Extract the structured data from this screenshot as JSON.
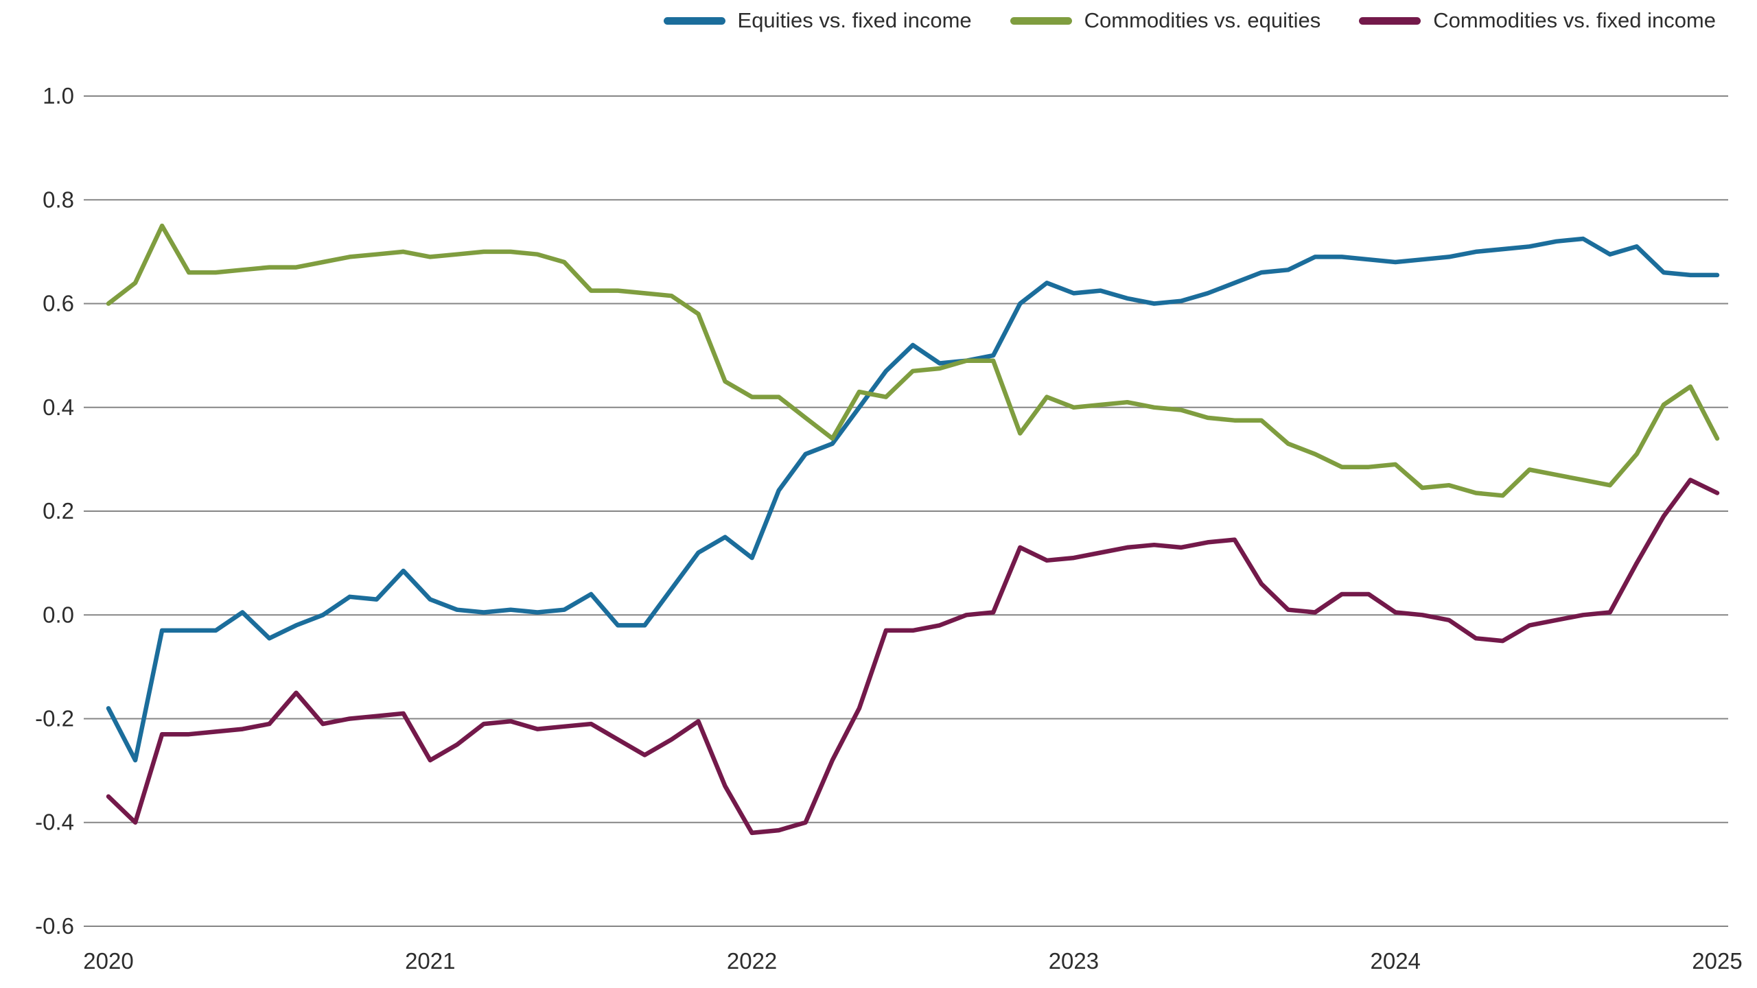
{
  "colors": {
    "background": "#ffffff",
    "gridline": "#858585",
    "axis_text": "#2d2d2d",
    "blue": "#1b6d9b",
    "green": "#7f9d3f",
    "maroon": "#73194a"
  },
  "chart_data": {
    "type": "line",
    "title": "",
    "xlabel": "",
    "ylabel": "",
    "xlim": [
      2020,
      2025
    ],
    "ylim": [
      -0.6,
      1.0
    ],
    "grid": "horizontal",
    "legend_position": "top",
    "x_unit": "monthly from January 2020 to January 2025",
    "x_tick_labels": [
      "2020",
      "2021",
      "2022",
      "2023",
      "2024",
      "2025"
    ],
    "y_tick_labels": [
      "1.0",
      "0.8",
      "0.6",
      "0.4",
      "0.2",
      "0.0",
      "-0.2",
      "-0.4",
      "-0.6"
    ],
    "series": [
      {
        "name": "Equities vs. fixed income",
        "color": "#1b6d9b",
        "values": [
          -0.18,
          -0.28,
          -0.03,
          -0.03,
          -0.03,
          0.005,
          -0.045,
          -0.02,
          0.0,
          0.035,
          0.03,
          0.085,
          0.03,
          0.01,
          0.005,
          0.01,
          0.005,
          0.01,
          0.04,
          -0.02,
          -0.02,
          0.05,
          0.12,
          0.15,
          0.11,
          0.24,
          0.31,
          0.33,
          0.4,
          0.47,
          0.52,
          0.485,
          0.49,
          0.5,
          0.6,
          0.64,
          0.62,
          0.625,
          0.61,
          0.6,
          0.605,
          0.62,
          0.64,
          0.66,
          0.665,
          0.69,
          0.69,
          0.685,
          0.68,
          0.685,
          0.69,
          0.7,
          0.705,
          0.71,
          0.72,
          0.725,
          0.695,
          0.71,
          0.66,
          0.655,
          0.655
        ]
      },
      {
        "name": "Commodities vs. equities",
        "color": "#7f9d3f",
        "values": [
          0.6,
          0.64,
          0.75,
          0.66,
          0.66,
          0.665,
          0.67,
          0.67,
          0.68,
          0.69,
          0.695,
          0.7,
          0.69,
          0.695,
          0.7,
          0.7,
          0.695,
          0.68,
          0.625,
          0.625,
          0.62,
          0.615,
          0.58,
          0.45,
          0.42,
          0.42,
          0.38,
          0.34,
          0.43,
          0.42,
          0.47,
          0.475,
          0.49,
          0.49,
          0.35,
          0.42,
          0.4,
          0.405,
          0.41,
          0.4,
          0.395,
          0.38,
          0.375,
          0.375,
          0.33,
          0.31,
          0.285,
          0.285,
          0.29,
          0.245,
          0.25,
          0.235,
          0.23,
          0.28,
          0.27,
          0.26,
          0.25,
          0.31,
          0.405,
          0.44,
          0.34
        ]
      },
      {
        "name": "Commodities vs. fixed income",
        "color": "#73194a",
        "values": [
          -0.35,
          -0.4,
          -0.23,
          -0.23,
          -0.225,
          -0.22,
          -0.21,
          -0.15,
          -0.21,
          -0.2,
          -0.195,
          -0.19,
          -0.28,
          -0.25,
          -0.21,
          -0.205,
          -0.22,
          -0.215,
          -0.21,
          -0.24,
          -0.27,
          -0.24,
          -0.205,
          -0.33,
          -0.42,
          -0.415,
          -0.4,
          -0.28,
          -0.18,
          -0.03,
          -0.03,
          -0.02,
          0.0,
          0.005,
          0.13,
          0.105,
          0.11,
          0.12,
          0.13,
          0.135,
          0.13,
          0.14,
          0.145,
          0.06,
          0.01,
          0.005,
          0.04,
          0.04,
          0.005,
          0.0,
          -0.01,
          -0.045,
          -0.05,
          -0.02,
          -0.01,
          0.0,
          0.005,
          0.1,
          0.19,
          0.26,
          0.235
        ]
      }
    ]
  }
}
